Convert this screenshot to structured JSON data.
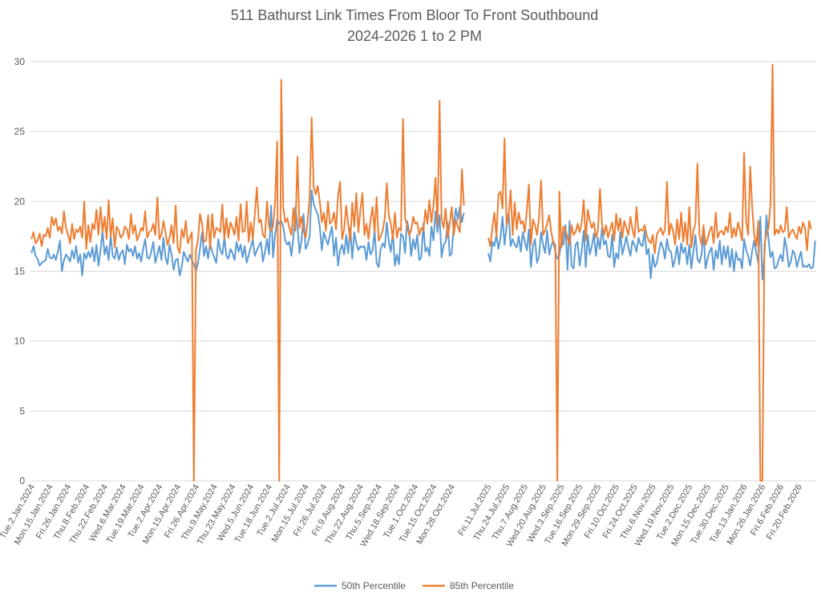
{
  "chart_data": {
    "type": "line",
    "title": "511 Bathurst Link Times From Bloor To Front Southbound",
    "subtitle": "2024-2026 1 to 2 PM",
    "xlabel": "",
    "ylabel": "",
    "ylim": [
      0,
      30
    ],
    "yticks": [
      0,
      5,
      10,
      15,
      20,
      25,
      30
    ],
    "grid": true,
    "legend_position": "bottom",
    "x_tick_labels": [
      "Tue.2.Jan.2024",
      "Mon.15.Jan.2024",
      "Fri.26.Jan.2024",
      "Thu.8.Feb.2024",
      "Thu.22.Feb.2024",
      "Wed.6.Mar.2024",
      "Tue.19.Mar.2024",
      "Tue.2.Apr.2024",
      "Mon.15.Apr.2024",
      "Fri.26.Apr.2024",
      "Thu.9.May.2024",
      "Thu.23.May.2024",
      "Wed.5.Jun.2024",
      "Tue.18.Jun.2024",
      "Tue.2.Jul.2024",
      "Mon.15.Jul.2024",
      "Fri.26.Jul.2024",
      "Fri.9.Aug.2024",
      "Thu.22.Aug.2024",
      "Thu.5.Sep.2024",
      "Wed.18.Sep.2024",
      "Tue.1.Oct.2024",
      "Tue.15.Oct.2024",
      "Mon.28.Oct.2024",
      "",
      "Fri.11.Jul.2025",
      "Thu.24.Jul.2025",
      "Thu.7.Aug.2025",
      "Wed.20.Aug.2025",
      "Wed.3.Sep.2025",
      "Tue.16.Sep.2025",
      "Mon.29.Sep.2025",
      "Fri.10.Oct.2025",
      "Fri.24.Oct.2025",
      "Thu.6.Nov.2025",
      "Wed.19.Nov.2025",
      "Tue.2.Dec.2025",
      "Mon.15.Dec.2025",
      "Tue.30.Dec.2025",
      "Tue.13.Jan.2026",
      "Mon.26.Jan.2026",
      "Fri.6.Feb.2026",
      "Fri.20.Feb.2026"
    ],
    "points_per_tick": 9,
    "series": [
      {
        "name": "50th Percentile",
        "color": "#5b9bd5",
        "values": [
          16.3,
          16.8,
          16.1,
          15.9,
          15.4,
          15.6,
          15.7,
          15.8,
          16.6,
          16.0,
          15.9,
          16.2,
          15.8,
          16.4,
          17.2,
          15.0,
          15.8,
          16.2,
          16.0,
          15.7,
          16.5,
          15.9,
          16.8,
          15.6,
          16.2,
          14.7,
          16.3,
          15.9,
          16.4,
          16.0,
          16.7,
          15.7,
          16.9,
          15.4,
          16.5,
          17.9,
          16.2,
          16.8,
          15.8,
          17.6,
          16.1,
          15.9,
          16.7,
          15.8,
          16.3,
          16.5,
          15.5,
          16.9,
          16.4,
          16.6,
          16.1,
          16.8,
          15.9,
          16.3,
          15.7,
          16.6,
          17.3,
          16.0,
          15.9,
          16.4,
          17.1,
          15.6,
          16.2,
          16.8,
          15.8,
          17.4,
          16.0,
          15.5,
          16.9,
          16.2,
          15.1,
          15.8,
          15.9,
          14.7,
          15.3,
          16.4,
          16.0,
          15.7,
          16.2,
          15.8,
          15.5,
          15.0,
          15.6,
          16.6,
          17.8,
          16.1,
          16.8,
          15.9,
          17.0,
          16.4,
          16.0,
          15.6,
          17.3,
          16.5,
          16.2,
          17.4,
          16.1,
          15.9,
          16.6,
          16.3,
          15.8,
          17.1,
          16.4,
          16.9,
          16.0,
          16.8,
          15.6,
          16.2,
          16.7,
          17.3,
          16.1,
          16.5,
          16.8,
          17.1,
          15.7,
          16.4,
          17.3,
          16.2,
          19.7,
          16.0,
          17.6,
          18.7,
          18.4,
          18.6,
          18.2,
          17.2,
          16.9,
          17.1,
          16.1,
          17.4,
          19.6,
          18.3,
          16.3,
          17.2,
          19.1,
          16.6,
          16.9,
          17.5,
          20.8,
          19.8,
          19.4,
          19.1,
          18.2,
          16.5,
          17.8,
          17.3,
          16.9,
          17.6,
          18.2,
          16.1,
          17.4,
          15.4,
          16.5,
          16.9,
          16.2,
          17.6,
          16.3,
          18.1,
          15.9,
          17.8,
          17.0,
          16.5,
          16.8,
          16.7,
          16.8,
          15.8,
          17.1,
          16.2,
          16.5,
          17.9,
          15.6,
          15.3,
          16.6,
          17.0,
          16.7,
          18.5,
          17.1,
          16.4,
          17.8,
          15.4,
          16.2,
          15.5,
          17.7,
          17.5,
          16.3,
          18.6,
          17.9,
          16.1,
          17.3,
          16.6,
          17.6,
          15.8,
          16.0,
          18.4,
          16.4,
          16.7,
          16.1,
          18.2,
          17.2,
          19.3,
          17.8,
          19.0,
          16.0,
          16.9,
          17.1,
          18.5,
          16.1,
          16.3,
          18.3,
          19.5,
          18.7,
          19.6,
          18.5,
          19.2,
          null,
          null,
          null,
          null,
          null,
          null,
          null,
          null,
          null,
          null,
          null,
          16.3,
          15.7,
          17.1,
          16.8,
          17.6,
          16.6,
          17.4,
          18.9,
          16.9,
          18.2,
          19.2,
          16.8,
          17.3,
          16.9,
          16.7,
          17.5,
          16.4,
          17.8,
          17.1,
          16.5,
          18.0,
          15.3,
          16.8,
          17.3,
          15.6,
          16.1,
          17.8,
          16.9,
          16.3,
          17.9,
          16.2,
          16.8,
          17.2,
          16.4,
          15.9,
          16.1,
          17.2,
          16.9,
          18.3,
          15.1,
          18.6,
          15.4,
          15.2,
          16.9,
          17.1,
          15.4,
          16.5,
          17.9,
          15.3,
          17.6,
          16.2,
          16.8,
          17.7,
          16.1,
          17.4,
          16.6,
          18.1,
          16.9,
          17.2,
          16.1,
          16.0,
          17.6,
          15.3,
          16.3,
          15.9,
          17.8,
          16.2,
          16.8,
          17.5,
          16.7,
          16.1,
          17.2,
          16.9,
          16.4,
          17.4,
          16.9,
          16.8,
          17.9,
          16.2,
          16.6,
          14.5,
          16.2,
          15.3,
          15.6,
          16.4,
          17.1,
          16.7,
          15.9,
          17.3,
          16.5,
          16.4,
          15.3,
          15.9,
          16.8,
          15.5,
          17.0,
          16.3,
          16.7,
          15.5,
          16.9,
          15.2,
          16.4,
          17.6,
          15.9,
          15.6,
          16.2,
          17.8,
          15.2,
          15.9,
          16.4,
          16.7,
          15.1,
          16.5,
          15.9,
          17.2,
          15.5,
          16.8,
          15.9,
          16.8,
          15.3,
          16.6,
          15.0,
          16.4,
          15.8,
          15.9,
          15.2,
          17.3,
          16.5,
          16.1,
          15.4,
          16.5,
          17.2,
          16.3,
          15.6,
          18.9,
          14.4,
          16.1,
          19.0,
          17.3,
          16.0,
          16.4,
          15.2,
          15.3,
          15.8,
          16.2,
          15.7,
          17.4,
          16.6,
          15.3,
          15.7,
          16.5,
          16.2,
          15.3,
          15.9,
          16.4,
          15.3,
          15.4,
          15.3,
          15.5,
          15.2,
          15.3,
          17.2
        ]
      },
      {
        "name": "85th Percentile",
        "color": "#ed7d31",
        "values": [
          17.3,
          17.8,
          17.0,
          17.2,
          17.7,
          16.8,
          17.6,
          17.5,
          18.1,
          17.4,
          18.9,
          18.3,
          18.8,
          17.9,
          18.2,
          17.7,
          19.3,
          18.1,
          17.6,
          17.0,
          18.4,
          17.3,
          18.0,
          17.8,
          18.2,
          17.4,
          20.0,
          16.6,
          18.3,
          17.1,
          18.4,
          18.0,
          19.4,
          17.6,
          19.6,
          17.8,
          18.9,
          17.3,
          20.1,
          17.5,
          18.8,
          16.7,
          18.2,
          17.9,
          17.4,
          17.6,
          18.2,
          18.0,
          17.3,
          19.1,
          17.7,
          18.3,
          17.2,
          17.6,
          18.1,
          17.9,
          19.3,
          17.4,
          17.8,
          17.9,
          18.4,
          17.6,
          20.3,
          17.3,
          17.6,
          18.6,
          17.8,
          16.9,
          17.4,
          18.3,
          17.0,
          19.7,
          16.7,
          16.3,
          18.0,
          17.4,
          18.6,
          17.0,
          17.4,
          17.8,
          0,
          16.5,
          17.2,
          19.1,
          18.4,
          17.1,
          17.2,
          19.0,
          16.6,
          19.1,
          17.4,
          18.1,
          18.0,
          17.8,
          19.8,
          17.3,
          18.8,
          17.4,
          18.5,
          18.1,
          17.6,
          18.9,
          17.2,
          19.8,
          17.8,
          17.9,
          20.0,
          17.1,
          18.5,
          17.3,
          19.1,
          21.0,
          18.5,
          18.7,
          17.6,
          17.4,
          20.0,
          18.2,
          17.9,
          18.2,
          20.0,
          24.3,
          0,
          28.7,
          19.6,
          18.5,
          18.8,
          18.1,
          17.6,
          19.5,
          17.9,
          23.2,
          18.1,
          18.9,
          17.9,
          17.4,
          18.6,
          20.2,
          26.0,
          21.0,
          20.5,
          21.1,
          20.0,
          18.5,
          19.2,
          17.9,
          20.0,
          18.4,
          18.6,
          19.2,
          18.0,
          20.4,
          21.4,
          17.3,
          18.0,
          19.7,
          18.4,
          17.2,
          19.9,
          18.2,
          20.6,
          17.8,
          19.4,
          20.6,
          17.6,
          18.4,
          17.3,
          18.7,
          19.6,
          17.8,
          20.3,
          17.2,
          17.5,
          17.9,
          18.8,
          21.3,
          19.0,
          18.4,
          17.3,
          19.2,
          17.4,
          18.1,
          17.9,
          25.9,
          18.8,
          18.3,
          17.6,
          17.9,
          18.9,
          18.4,
          18.5,
          17.6,
          18.1,
          17.9,
          19.4,
          18.4,
          20.1,
          18.5,
          19.7,
          21.7,
          18.3,
          27.2,
          18.7,
          18.1,
          19.5,
          17.4,
          18.4,
          19.6,
          17.6,
          18.7,
          18.2,
          17.8,
          22.3,
          19.7,
          null,
          null,
          null,
          null,
          null,
          null,
          null,
          null,
          null,
          null,
          null,
          17.4,
          16.8,
          18.1,
          19.2,
          17.5,
          20.5,
          20.7,
          19.5,
          24.5,
          18.3,
          19.0,
          20.8,
          17.6,
          19.9,
          18.0,
          19.2,
          18.4,
          18.6,
          17.8,
          19.4,
          21.2,
          16.9,
          18.7,
          18.3,
          17.6,
          18.9,
          21.5,
          17.6,
          17.9,
          18.4,
          19.0,
          17.8,
          17.1,
          16.9,
          0,
          20.7,
          16.7,
          18.2,
          18.0,
          17.4,
          16.9,
          18.3,
          17.6,
          17.8,
          18.4,
          17.8,
          18.5,
          20.1,
          17.2,
          19.4,
          18.6,
          18.1,
          18.5,
          17.4,
          17.9,
          20.9,
          18.4,
          17.6,
          18.3,
          17.4,
          18.0,
          18.5,
          17.2,
          19.1,
          17.9,
          18.8,
          17.4,
          18.6,
          18.1,
          17.6,
          18.9,
          18.0,
          17.4,
          19.6,
          17.8,
          18.0,
          17.9,
          18.3,
          17.6,
          17.2,
          17.0,
          17.6,
          16.3,
          17.6,
          17.9,
          18.1,
          17.6,
          18.0,
          21.4,
          17.6,
          18.4,
          17.9,
          16.9,
          18.7,
          17.3,
          19.2,
          17.1,
          18.5,
          16.9,
          19.6,
          16.7,
          17.9,
          18.4,
          22.7,
          17.6,
          16.9,
          18.3,
          16.9,
          17.3,
          17.9,
          18.2,
          17.0,
          19.2,
          17.4,
          17.8,
          17.9,
          17.6,
          18.2,
          17.8,
          19.2,
          17.4,
          18.1,
          17.5,
          18.5,
          17.9,
          17.2,
          23.5,
          18.6,
          17.6,
          22.5,
          19.5,
          17.6,
          16.8,
          18.6,
          0,
          0,
          16.9,
          17.7,
          18.1,
          19.8,
          29.8,
          17.6,
          18.0,
          17.7,
          18.3,
          17.8,
          17.9,
          19.6,
          17.4,
          17.8,
          18.0,
          17.6,
          17.3,
          18.2,
          17.7,
          18.5,
          18.1,
          16.5,
          18.6,
          18.0,
          null,
          null
        ]
      }
    ]
  }
}
